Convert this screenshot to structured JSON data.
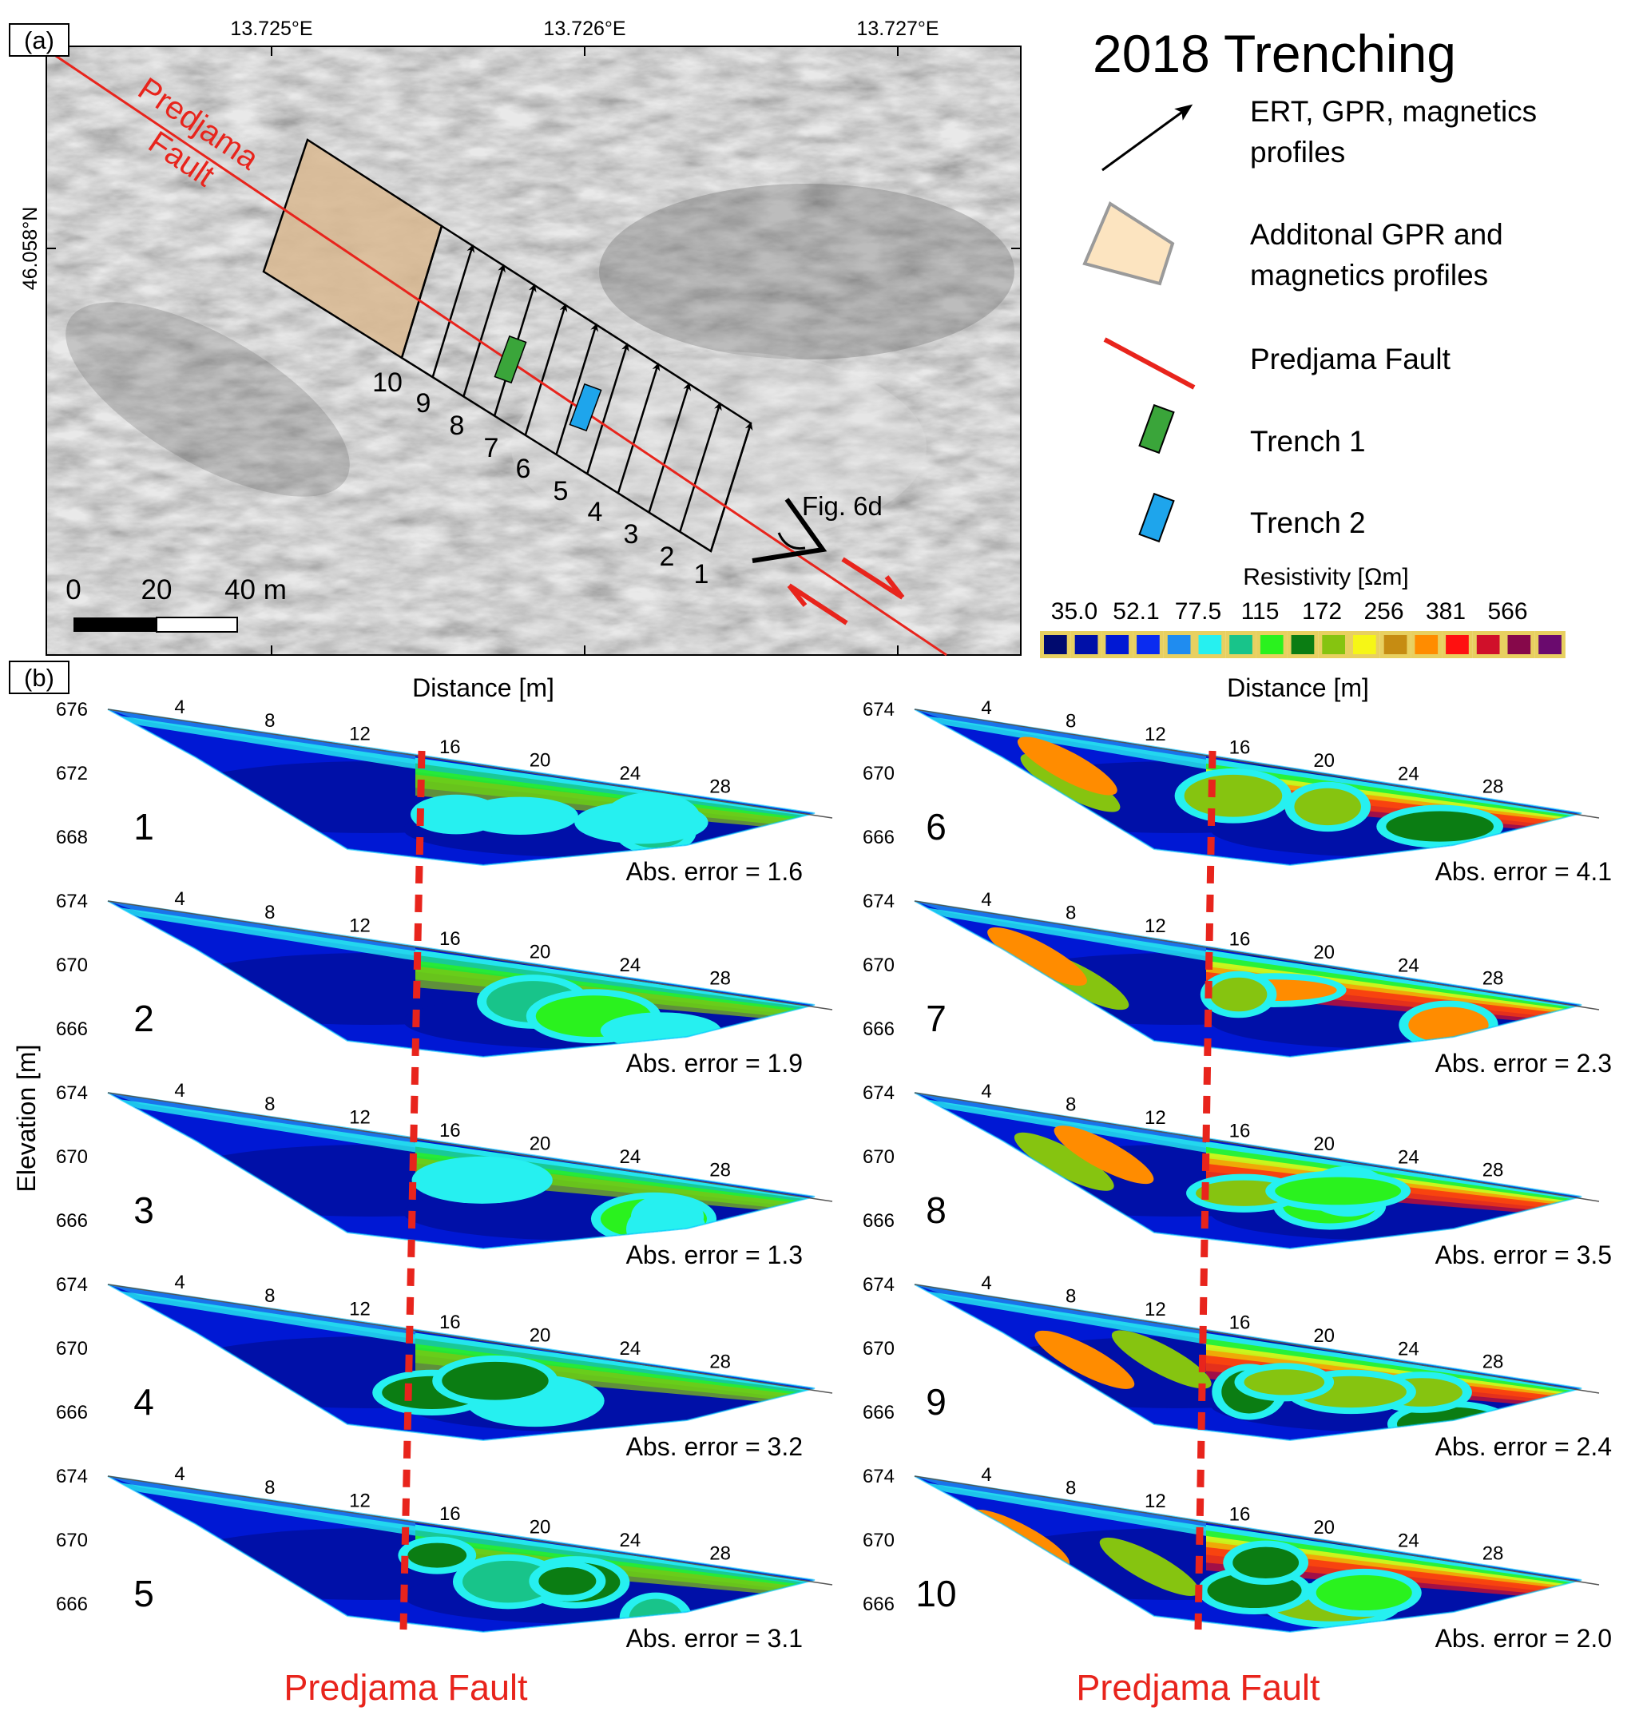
{
  "panel_a": {
    "label": "(a)",
    "lon_ticks": [
      "13.725°E",
      "13.726°E",
      "13.727°E"
    ],
    "lat_tick": "46.058°N",
    "fault_label_line1": "Predjama",
    "fault_label_line2": "Fault",
    "profile_numbers": [
      "10",
      "9",
      "8",
      "7",
      "6",
      "5",
      "4",
      "3",
      "2",
      "1"
    ],
    "fig6d_label": "Fig. 6d",
    "scalebar": {
      "labels": [
        "0",
        "20",
        "40 m"
      ]
    },
    "colors": {
      "fault": "#e8241c",
      "trench1": "#3aa53a",
      "trench2": "#1ea5ec",
      "gpr_box": "#d9b890"
    }
  },
  "legend": {
    "title": "2018 Trenching",
    "items": [
      {
        "icon": "arrow-icon",
        "line1": "ERT, GPR, magnetics",
        "line2": "profiles"
      },
      {
        "icon": "gpr-area-icon",
        "line1": "Additonal GPR and",
        "line2": "magnetics profiles"
      },
      {
        "icon": "fault-line-icon",
        "line1": "Predjama Fault",
        "line2": ""
      },
      {
        "icon": "trench1-icon",
        "line1": "Trench 1",
        "line2": ""
      },
      {
        "icon": "trench2-icon",
        "line1": "Trench 2",
        "line2": ""
      }
    ]
  },
  "colorbar": {
    "title": "Resistivity [Ωm]",
    "tick_labels": [
      "35.0",
      "52.1",
      "77.5",
      "115",
      "172",
      "256",
      "381",
      "566"
    ],
    "colors": [
      "#000a6e",
      "#0010a8",
      "#0018d4",
      "#0a2cf0",
      "#1f8cf0",
      "#26f0f0",
      "#18c48a",
      "#2af21e",
      "#0b7d13",
      "#86c410",
      "#f6f616",
      "#c68c12",
      "#ff8c00",
      "#ff1010",
      "#d0102a",
      "#86084a",
      "#6a0a6e"
    ]
  },
  "panel_b": {
    "label": "(b)",
    "xlabel": "Distance [m]",
    "ylabel": "Elevation [m]",
    "distance_ticks": [
      "4",
      "8",
      "12",
      "16",
      "20",
      "24",
      "28"
    ],
    "fault_label": "Predjama Fault",
    "profiles": [
      {
        "number": "1",
        "elevations": [
          "676",
          "672",
          "668"
        ],
        "error": "Abs. error = 1.6"
      },
      {
        "number": "2",
        "elevations": [
          "674",
          "670",
          "666"
        ],
        "error": "Abs. error = 1.9"
      },
      {
        "number": "3",
        "elevations": [
          "674",
          "670",
          "666"
        ],
        "error": "Abs. error = 1.3"
      },
      {
        "number": "4",
        "elevations": [
          "674",
          "670",
          "666"
        ],
        "error": "Abs. error = 3.2"
      },
      {
        "number": "5",
        "elevations": [
          "674",
          "670",
          "666"
        ],
        "error": "Abs. error = 3.1"
      },
      {
        "number": "6",
        "elevations": [
          "674",
          "670",
          "666"
        ],
        "error": "Abs. error = 4.1"
      },
      {
        "number": "7",
        "elevations": [
          "674",
          "670",
          "666"
        ],
        "error": "Abs. error = 2.3"
      },
      {
        "number": "8",
        "elevations": [
          "674",
          "670",
          "666"
        ],
        "error": "Abs. error = 3.5"
      },
      {
        "number": "9",
        "elevations": [
          "674",
          "670",
          "666"
        ],
        "error": "Abs. error = 2.4"
      },
      {
        "number": "10",
        "elevations": [
          "674",
          "670",
          "666"
        ],
        "error": "Abs. error = 2.0"
      }
    ]
  }
}
